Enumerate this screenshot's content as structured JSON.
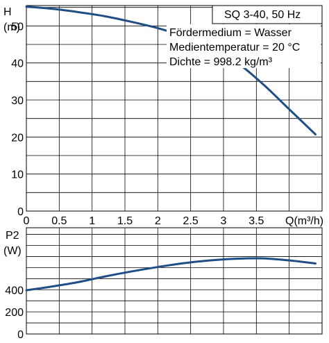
{
  "chart_data": [
    {
      "type": "line",
      "title": "SQ 3-40, 50 Hz",
      "annotations": [
        "Fördermedium = Wasser",
        "Medientemperatur = 20 °C",
        "Dichte = 998.2 kg/m³"
      ],
      "ylabel_line1": "H",
      "ylabel_line2": "(m)",
      "xlabel": "Q(m³/h)",
      "x_ticks": [
        "0",
        "0.5",
        "1",
        "1.5",
        "2",
        "2.5",
        "3",
        "3.5"
      ],
      "x_tick_values": [
        0,
        0.5,
        1,
        1.5,
        2,
        2.5,
        3,
        3.5
      ],
      "y_ticks": [
        "0",
        "10",
        "20",
        "30",
        "40",
        "50"
      ],
      "y_tick_values": [
        0,
        10,
        20,
        30,
        40,
        50
      ],
      "xlim": [
        0,
        4.5
      ],
      "ylim": [
        0,
        55.5
      ],
      "grid": true,
      "series": [
        {
          "color": "#1f4e86",
          "points": [
            [
              0.0,
              55.2
            ],
            [
              0.4,
              54.6
            ],
            [
              0.8,
              53.7
            ],
            [
              1.2,
              52.6
            ],
            [
              1.6,
              51.1
            ],
            [
              2.0,
              49.4
            ],
            [
              2.4,
              47.2
            ],
            [
              2.8,
              44.3
            ],
            [
              3.2,
              40.2
            ],
            [
              3.6,
              34.3
            ],
            [
              4.0,
              27.5
            ],
            [
              4.4,
              20.7
            ]
          ]
        }
      ]
    },
    {
      "type": "line",
      "ylabel_line1": "P2",
      "ylabel_line2": "(W)",
      "y_ticks": [
        "0",
        "200",
        "400"
      ],
      "y_tick_values": [
        0,
        200,
        400
      ],
      "xlim": [
        0,
        4.5
      ],
      "ylim": [
        0,
        960
      ],
      "grid": true,
      "series": [
        {
          "color": "#1f4e86",
          "points": [
            [
              0.0,
              395
            ],
            [
              0.4,
              430
            ],
            [
              0.8,
              470
            ],
            [
              1.2,
              520
            ],
            [
              1.6,
              565
            ],
            [
              2.0,
              605
            ],
            [
              2.4,
              640
            ],
            [
              2.8,
              665
            ],
            [
              3.2,
              680
            ],
            [
              3.6,
              683
            ],
            [
              4.0,
              665
            ],
            [
              4.4,
              637
            ]
          ]
        }
      ]
    }
  ]
}
